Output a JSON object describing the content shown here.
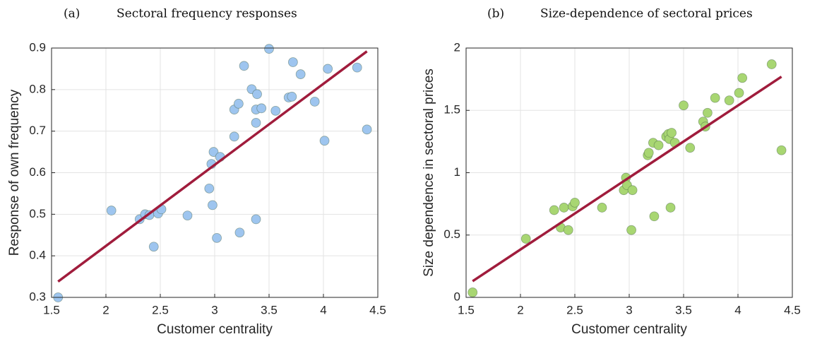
{
  "chart_data": [
    {
      "type": "scatter",
      "label": "(a)",
      "title": "Sectoral frequency responses",
      "xlabel": "Customer centrality",
      "ylabel": "Response of own frequency",
      "xlim": [
        1.5,
        4.5
      ],
      "xticks": [
        1.5,
        2,
        2.5,
        3,
        3.5,
        4,
        4.5
      ],
      "ylim": [
        0.3,
        0.9
      ],
      "yticks": [
        0.3,
        0.4,
        0.5,
        0.6,
        0.7,
        0.8,
        0.9
      ],
      "grid": true,
      "points": {
        "color": "#9ec5ef",
        "x": [
          1.56,
          2.05,
          2.31,
          2.36,
          2.4,
          2.48,
          2.51,
          2.44,
          2.75,
          2.95,
          2.97,
          2.98,
          2.99,
          3.02,
          3.05,
          3.18,
          3.18,
          3.22,
          3.23,
          3.27,
          3.34,
          3.38,
          3.38,
          3.38,
          3.39,
          3.43,
          3.5,
          3.56,
          3.68,
          3.71,
          3.72,
          3.79,
          3.92,
          4.01,
          4.04,
          4.31,
          4.4
        ],
        "y": [
          0.3,
          0.509,
          0.488,
          0.5,
          0.498,
          0.502,
          0.512,
          0.422,
          0.497,
          0.562,
          0.621,
          0.522,
          0.65,
          0.443,
          0.638,
          0.687,
          0.752,
          0.766,
          0.456,
          0.857,
          0.801,
          0.752,
          0.72,
          0.488,
          0.789,
          0.755,
          0.898,
          0.749,
          0.781,
          0.783,
          0.866,
          0.837,
          0.771,
          0.677,
          0.85,
          0.853,
          0.704
        ]
      },
      "fit": {
        "color": "#a01c3c",
        "x": [
          1.56,
          4.4
        ],
        "y": [
          0.338,
          0.892
        ]
      }
    },
    {
      "type": "scatter",
      "label": "(b)",
      "title": "Size-dependence of sectoral prices",
      "xlabel": "Customer centrality",
      "ylabel": "Size dependence in sectoral prices",
      "xlim": [
        1.5,
        4.5
      ],
      "xticks": [
        1.5,
        2,
        2.5,
        3,
        3.5,
        4,
        4.5
      ],
      "ylim": [
        0,
        2
      ],
      "yticks": [
        0,
        0.5,
        1,
        1.5,
        2
      ],
      "grid": true,
      "points": {
        "color": "#a8d672",
        "x": [
          1.56,
          2.05,
          2.31,
          2.37,
          2.4,
          2.44,
          2.48,
          2.5,
          2.75,
          2.95,
          2.97,
          2.98,
          3.02,
          3.03,
          3.17,
          3.18,
          3.22,
          3.23,
          3.27,
          3.34,
          3.36,
          3.37,
          3.38,
          3.39,
          3.42,
          3.5,
          3.56,
          3.68,
          3.7,
          3.72,
          3.79,
          3.92,
          4.01,
          4.04,
          4.31,
          4.4
        ],
        "y": [
          0.04,
          0.47,
          0.7,
          0.56,
          0.72,
          0.54,
          0.73,
          0.76,
          0.72,
          0.86,
          0.96,
          0.9,
          0.54,
          0.86,
          1.14,
          1.16,
          1.24,
          0.65,
          1.22,
          1.29,
          1.31,
          1.27,
          0.72,
          1.32,
          1.24,
          1.54,
          1.2,
          1.41,
          1.37,
          1.48,
          1.6,
          1.58,
          1.64,
          1.76,
          1.87,
          1.18
        ]
      },
      "fit": {
        "color": "#a01c3c",
        "x": [
          1.56,
          4.4
        ],
        "y": [
          0.13,
          1.77
        ]
      }
    }
  ]
}
